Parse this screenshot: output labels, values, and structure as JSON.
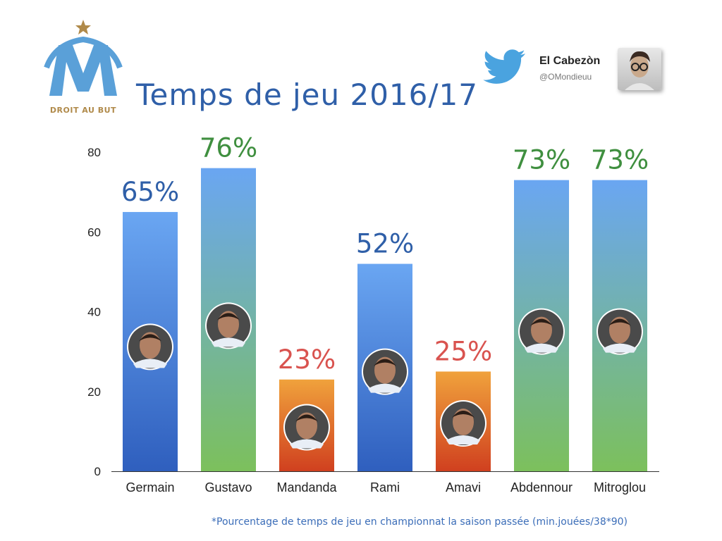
{
  "logo": {
    "text": "DROIT AU BUT"
  },
  "title": "Temps de jeu 2016/17",
  "author": {
    "name": "El Cabezòn",
    "handle": "@OMondieuu"
  },
  "footnote": "*Pourcentage de temps de jeu en championnat la saison passée (min.jouées/38*90)",
  "colors": {
    "blue_top": "#6aa6f2",
    "blue_bottom": "#2f5fbe",
    "green_top": "#6aa6f2",
    "green_bottom": "#7cc05c",
    "orange_top": "#f0a23c",
    "orange_bottom": "#d0401f",
    "label_blue": "#2f5fa8",
    "label_green": "#3f8f3f",
    "label_red": "#d9534f"
  },
  "chart_data": {
    "type": "bar",
    "categories": [
      "Germain",
      "Gustavo",
      "Mandanda",
      "Rami",
      "Amavi",
      "Abdennour",
      "Mitroglou"
    ],
    "values": [
      65,
      76,
      23,
      52,
      25,
      73,
      73
    ],
    "data_labels": [
      "65%",
      "76%",
      "23%",
      "52%",
      "25%",
      "73%",
      "73%"
    ],
    "bar_styles": [
      "blue",
      "green",
      "orange",
      "blue",
      "orange",
      "green",
      "green"
    ],
    "label_colors": [
      "label_blue",
      "label_green",
      "label_red",
      "label_blue",
      "label_red",
      "label_green",
      "label_green"
    ],
    "yticks": [
      0,
      20,
      40,
      60,
      80
    ],
    "ylim": [
      0,
      80
    ],
    "title": "Temps de jeu 2016/17",
    "xlabel": "",
    "ylabel": "",
    "grid": false
  }
}
